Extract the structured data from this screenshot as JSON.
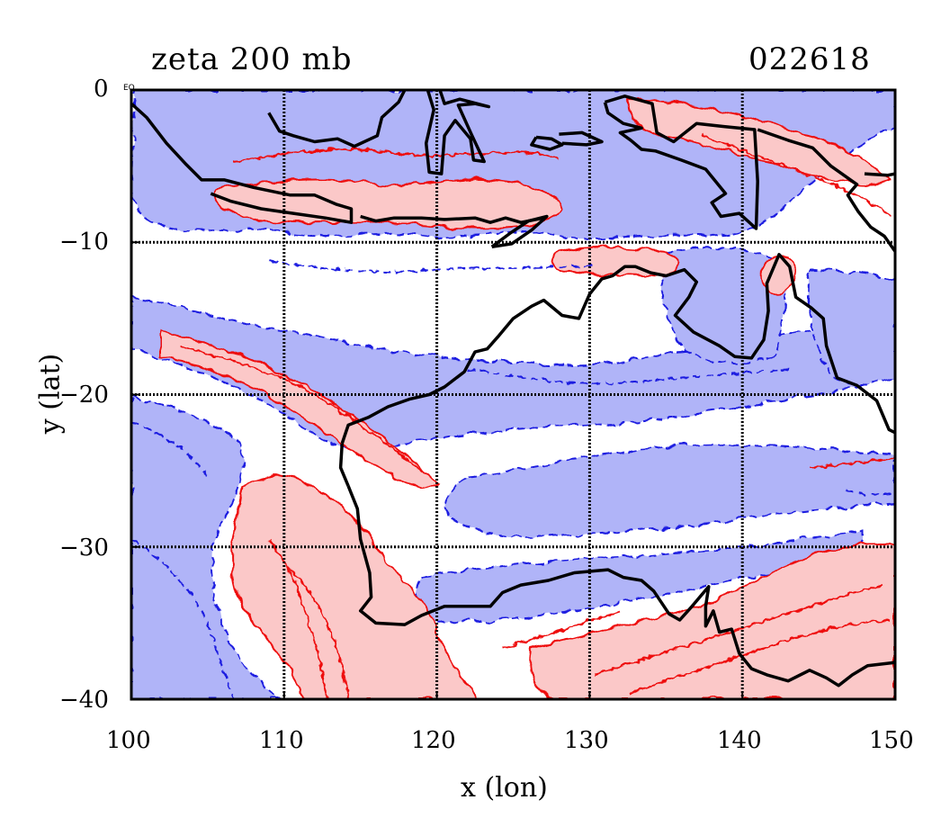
{
  "header": {
    "title_left": "zeta 200 mb",
    "title_right": "022618"
  },
  "corner_label": "EQ",
  "chart_data": {
    "type": "contour",
    "xlabel": "x (lon)",
    "ylabel": "y (lat)",
    "xlim": [
      100,
      150
    ],
    "ylim": [
      -40,
      0
    ],
    "x_ticks": [
      "100",
      "110",
      "120",
      "130",
      "140",
      "150"
    ],
    "y_ticks": [
      "0",
      "−10",
      "−20",
      "−30",
      "−40"
    ],
    "grid": true,
    "colors": {
      "positive_fill": "#fbc8c8",
      "positive_line": "#ee1111",
      "negative_fill": "#b0b4f8",
      "negative_line": "#1a1ae0",
      "coastline": "#000000"
    },
    "coastline": [
      [
        [
          113.8,
          -23.2
        ],
        [
          114.2,
          -22.0
        ],
        [
          115.5,
          -21.5
        ],
        [
          116.8,
          -20.8
        ],
        [
          118.2,
          -20.3
        ],
        [
          119.5,
          -20.0
        ],
        [
          120.5,
          -19.5
        ],
        [
          121.8,
          -18.5
        ],
        [
          122.5,
          -17.2
        ],
        [
          123.3,
          -17.0
        ],
        [
          124.0,
          -16.2
        ],
        [
          125.0,
          -15.0
        ],
        [
          126.2,
          -14.2
        ],
        [
          127.0,
          -13.8
        ],
        [
          128.2,
          -14.8
        ],
        [
          129.3,
          -15.0
        ],
        [
          130.0,
          -13.4
        ],
        [
          130.8,
          -12.4
        ],
        [
          131.5,
          -12.2
        ],
        [
          132.3,
          -11.6
        ],
        [
          133.0,
          -11.6
        ],
        [
          134.0,
          -12.0
        ],
        [
          135.0,
          -12.2
        ],
        [
          136.2,
          -11.8
        ],
        [
          137.0,
          -12.6
        ],
        [
          136.5,
          -13.6
        ],
        [
          135.6,
          -14.8
        ],
        [
          136.8,
          -15.9
        ],
        [
          138.5,
          -16.8
        ],
        [
          139.5,
          -17.5
        ],
        [
          140.6,
          -17.6
        ],
        [
          141.4,
          -16.4
        ],
        [
          141.7,
          -14.5
        ],
        [
          141.6,
          -12.7
        ],
        [
          142.4,
          -10.8
        ],
        [
          143.1,
          -11.6
        ],
        [
          143.5,
          -13.6
        ],
        [
          144.5,
          -14.3
        ],
        [
          145.3,
          -15.0
        ],
        [
          145.5,
          -16.8
        ],
        [
          146.2,
          -18.9
        ],
        [
          147.5,
          -19.4
        ],
        [
          148.8,
          -20.4
        ],
        [
          149.6,
          -22.3
        ],
        [
          150.0,
          -22.5
        ]
      ],
      [
        [
          114.2,
          -26.0
        ],
        [
          113.7,
          -24.8
        ],
        [
          113.8,
          -23.2
        ]
      ],
      [
        [
          114.2,
          -26.0
        ],
        [
          114.8,
          -27.5
        ],
        [
          115.0,
          -29.5
        ],
        [
          115.6,
          -31.7
        ],
        [
          115.7,
          -33.3
        ],
        [
          115.0,
          -34.2
        ],
        [
          116.0,
          -35.0
        ],
        [
          117.9,
          -35.1
        ],
        [
          119.0,
          -34.5
        ],
        [
          120.5,
          -33.9
        ],
        [
          122.0,
          -33.9
        ],
        [
          123.5,
          -33.9
        ],
        [
          124.3,
          -33.0
        ],
        [
          125.5,
          -32.5
        ],
        [
          127.3,
          -32.2
        ],
        [
          129.0,
          -31.7
        ],
        [
          131.2,
          -31.5
        ],
        [
          132.2,
          -32.0
        ],
        [
          133.4,
          -32.2
        ],
        [
          134.2,
          -32.9
        ],
        [
          135.2,
          -34.4
        ],
        [
          135.9,
          -34.8
        ],
        [
          136.7,
          -33.9
        ],
        [
          137.8,
          -32.6
        ],
        [
          137.6,
          -33.9
        ],
        [
          137.6,
          -35.2
        ],
        [
          138.1,
          -34.2
        ],
        [
          138.5,
          -35.6
        ],
        [
          139.3,
          -35.4
        ],
        [
          139.8,
          -37.0
        ],
        [
          140.6,
          -38.0
        ],
        [
          141.6,
          -38.4
        ],
        [
          143.0,
          -38.8
        ],
        [
          144.4,
          -38.1
        ],
        [
          145.5,
          -38.6
        ],
        [
          146.3,
          -39.1
        ],
        [
          147.2,
          -38.4
        ],
        [
          148.2,
          -37.8
        ],
        [
          149.9,
          -37.6
        ],
        [
          150.0,
          -37.5
        ]
      ],
      [
        [
          100.0,
          -0.9
        ],
        [
          101.0,
          -1.8
        ],
        [
          102.3,
          -3.5
        ],
        [
          103.6,
          -4.9
        ],
        [
          104.6,
          -5.9
        ],
        [
          106.1,
          -5.9
        ],
        [
          108.0,
          -6.4
        ],
        [
          110.4,
          -6.9
        ],
        [
          112.0,
          -6.9
        ],
        [
          113.4,
          -7.5
        ],
        [
          114.4,
          -7.8
        ],
        [
          114.4,
          -8.7
        ],
        [
          112.7,
          -8.4
        ],
        [
          110.6,
          -8.1
        ],
        [
          108.5,
          -7.8
        ],
        [
          106.5,
          -7.3
        ],
        [
          105.2,
          -6.8
        ]
      ],
      [
        [
          115.0,
          -8.3
        ],
        [
          116.0,
          -8.6
        ],
        [
          117.2,
          -8.4
        ],
        [
          119.0,
          -8.4
        ],
        [
          120.5,
          -8.5
        ],
        [
          122.5,
          -8.4
        ],
        [
          123.5,
          -8.7
        ],
        [
          124.5,
          -8.4
        ],
        [
          125.5,
          -8.7
        ],
        [
          127.0,
          -8.4
        ]
      ],
      [
        [
          123.6,
          -10.3
        ],
        [
          124.8,
          -9.4
        ],
        [
          126.0,
          -8.6
        ],
        [
          127.2,
          -8.3
        ],
        [
          126.2,
          -9.2
        ],
        [
          124.9,
          -10.1
        ],
        [
          123.6,
          -10.3
        ]
      ],
      [
        [
          109.0,
          -1.5
        ],
        [
          109.7,
          -2.7
        ],
        [
          110.6,
          -3.0
        ],
        [
          112.0,
          -3.4
        ],
        [
          113.5,
          -3.2
        ],
        [
          114.6,
          -3.7
        ],
        [
          116.1,
          -3.0
        ],
        [
          116.4,
          -1.8
        ],
        [
          117.5,
          -0.8
        ],
        [
          117.9,
          0.0
        ]
      ],
      [
        [
          119.4,
          0.0
        ],
        [
          119.8,
          -1.3
        ],
        [
          119.3,
          -3.5
        ],
        [
          119.5,
          -5.4
        ],
        [
          120.3,
          -5.5
        ],
        [
          120.5,
          -3.0
        ],
        [
          121.2,
          -2.0
        ],
        [
          122.2,
          -3.2
        ],
        [
          122.4,
          -4.6
        ],
        [
          123.1,
          -4.7
        ],
        [
          122.3,
          -3.0
        ],
        [
          121.4,
          -1.0
        ],
        [
          122.5,
          -0.9
        ],
        [
          123.4,
          -1.1
        ],
        [
          121.5,
          -0.6
        ],
        [
          120.5,
          -0.9
        ],
        [
          120.2,
          0.0
        ]
      ],
      [
        [
          131.0,
          -0.8
        ],
        [
          132.3,
          -0.4
        ],
        [
          134.1,
          -0.9
        ],
        [
          134.4,
          -2.8
        ],
        [
          135.5,
          -3.4
        ],
        [
          137.0,
          -2.2
        ],
        [
          138.8,
          -2.4
        ],
        [
          140.8,
          -2.6
        ],
        [
          141.0,
          -6.0
        ],
        [
          140.9,
          -9.1
        ],
        [
          139.8,
          -8.1
        ],
        [
          138.6,
          -8.3
        ],
        [
          138.0,
          -7.4
        ],
        [
          138.9,
          -6.8
        ],
        [
          137.6,
          -5.2
        ],
        [
          136.0,
          -4.6
        ],
        [
          134.3,
          -4.0
        ],
        [
          133.4,
          -3.9
        ],
        [
          132.7,
          -3.3
        ],
        [
          132.0,
          -2.8
        ],
        [
          133.4,
          -2.5
        ],
        [
          132.2,
          -2.2
        ],
        [
          131.2,
          -1.5
        ],
        [
          131.0,
          -0.8
        ]
      ],
      [
        [
          141.0,
          -2.6
        ],
        [
          143.0,
          -3.3
        ],
        [
          144.6,
          -3.8
        ],
        [
          145.8,
          -5.0
        ],
        [
          147.5,
          -6.2
        ],
        [
          146.9,
          -6.9
        ],
        [
          147.6,
          -8.0
        ],
        [
          148.4,
          -9.0
        ],
        [
          149.3,
          -9.6
        ],
        [
          150.0,
          -10.6
        ]
      ],
      [
        [
          126.5,
          -3.1
        ],
        [
          127.5,
          -3.2
        ],
        [
          128.2,
          -3.6
        ],
        [
          127.4,
          -3.9
        ],
        [
          126.2,
          -3.6
        ],
        [
          126.5,
          -3.1
        ]
      ],
      [
        [
          128.0,
          -2.9
        ],
        [
          129.5,
          -2.8
        ],
        [
          130.8,
          -3.4
        ],
        [
          129.8,
          -3.6
        ],
        [
          128.2,
          -3.5
        ]
      ],
      [
        [
          148.0,
          -5.5
        ],
        [
          149.5,
          -5.6
        ],
        [
          150.0,
          -5.5
        ]
      ]
    ]
  }
}
